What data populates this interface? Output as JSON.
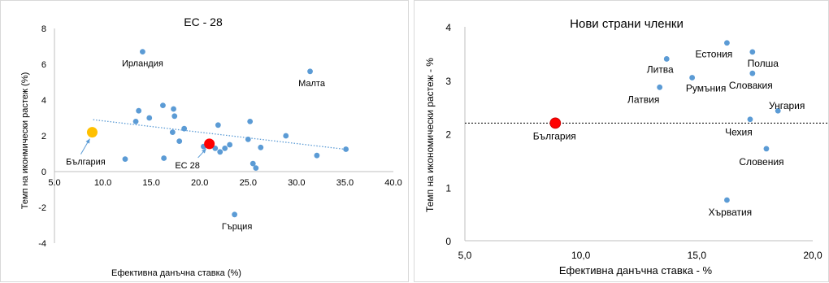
{
  "chart_data": [
    {
      "type": "scatter",
      "title": "ЕС - 28",
      "xlabel": "Ефективна  данъчна ставка (%)",
      "ylabel": "Темп на иконмически растеж (%)",
      "xlim": [
        5.0,
        40.0
      ],
      "ylim": [
        -4,
        8
      ],
      "x_ticks": [
        "5.0",
        "10.0",
        "15.0",
        "20.0",
        "25.0",
        "30.0",
        "35.0",
        "40.0"
      ],
      "y_ticks": [
        "-4",
        "-2",
        "0",
        "2",
        "4",
        "6",
        "8"
      ],
      "grid": false,
      "trendline": {
        "style": "dotted",
        "x": [
          9.0,
          35.0
        ],
        "y": [
          2.9,
          1.25
        ]
      },
      "colors": {
        "points": "#5b9bd5",
        "bulgaria": "#ffc000",
        "eu28": "#ff0000",
        "trend": "#5b9bd5"
      },
      "series": [
        {
          "x": [
            12.3,
            13.4,
            13.7,
            14.8,
            16.2,
            16.3,
            17.2,
            17.3,
            17.4,
            17.9,
            18.4,
            20.4,
            21.6,
            21.9,
            22.1,
            22.6,
            23.1,
            25.0,
            25.2,
            25.5,
            25.8,
            26.3,
            28.9,
            32.1,
            35.1,
            14.1,
            31.4,
            23.6
          ],
          "y": [
            0.7,
            2.8,
            3.4,
            3.0,
            3.7,
            0.75,
            2.2,
            3.5,
            3.1,
            1.7,
            2.4,
            1.4,
            1.3,
            2.6,
            1.1,
            1.3,
            1.5,
            1.8,
            2.8,
            0.45,
            0.2,
            1.35,
            2.0,
            0.9,
            1.25,
            6.7,
            5.6,
            -2.4
          ]
        }
      ],
      "highlights": [
        {
          "label": "България",
          "x": 8.9,
          "y": 2.2
        },
        {
          "label": "ЕС 28",
          "x": 21.0,
          "y": 1.55
        }
      ],
      "point_labels": [
        {
          "label": "Ирландия",
          "x": 14.1,
          "y": 6.7
        },
        {
          "label": "Малта",
          "x": 31.4,
          "y": 5.6
        },
        {
          "label": "Гърция",
          "x": 23.6,
          "y": -2.4
        }
      ]
    },
    {
      "type": "scatter",
      "title": "Нови страни членки",
      "xlabel": "Ефективна данъчна ставка - %",
      "ylabel": "Темп на икономически растеж - %",
      "xlim": [
        5.0,
        20.0
      ],
      "ylim": [
        0,
        4
      ],
      "x_ticks": [
        "5,0",
        "10,0",
        "15,0",
        "20,0"
      ],
      "y_ticks": [
        "0",
        "1",
        "2",
        "3",
        "4"
      ],
      "grid": false,
      "reference_line": {
        "style": "dashed",
        "y": 2.2
      },
      "colors": {
        "points": "#5b9bd5",
        "bulgaria": "#ff0000",
        "line": "#000000"
      },
      "series": [
        {
          "labels": [
            "Естония",
            "Полша",
            "Литва",
            "Румъния",
            "Словакия",
            "Латвия",
            "Унгария",
            "Чехия",
            "Словения",
            "Хърватия"
          ],
          "x": [
            16.3,
            17.4,
            13.7,
            14.8,
            17.4,
            13.4,
            18.5,
            17.3,
            18.0,
            16.3
          ],
          "y": [
            3.7,
            3.53,
            3.4,
            3.05,
            3.13,
            2.87,
            2.43,
            2.27,
            1.72,
            0.76
          ]
        }
      ],
      "highlights": [
        {
          "label": "България",
          "x": 8.9,
          "y": 2.2
        }
      ]
    }
  ]
}
